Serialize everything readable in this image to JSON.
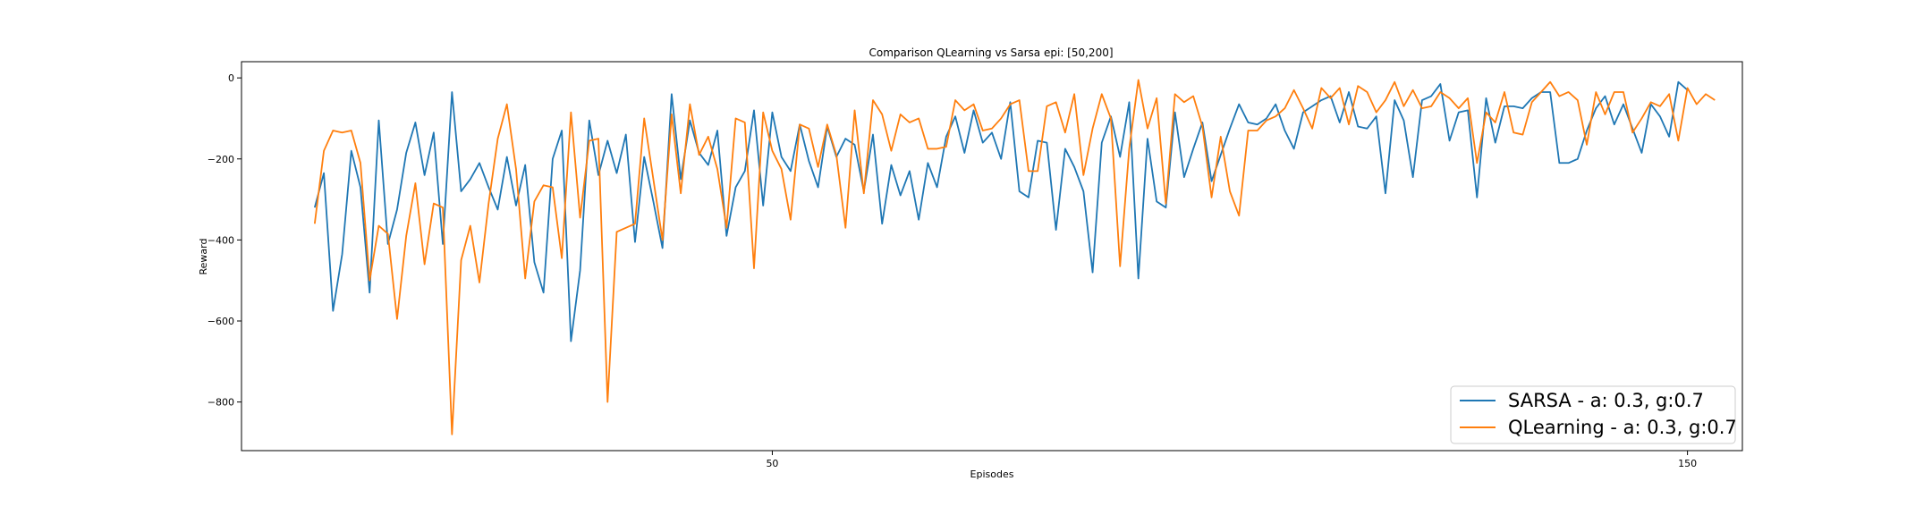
{
  "chart_data": {
    "type": "line",
    "title": "Comparison QLearning vs Sarsa epi: [50,200]",
    "xlabel": "Episodes",
    "ylabel": "Reward",
    "xlim": [
      -8,
      156
    ],
    "ylim": [
      -920,
      40
    ],
    "xticks": [
      50,
      150
    ],
    "yticks": [
      0,
      -200,
      -400,
      -600,
      -800
    ],
    "x_start": 0,
    "grid": false,
    "legend": "lower-right",
    "series": [
      {
        "name": "SARSA - a: 0.3, g:0.7",
        "color": "#1f77b4",
        "values": [
          -320,
          -235,
          -575,
          -435,
          -180,
          -270,
          -530,
          -105,
          -410,
          -325,
          -185,
          -110,
          -240,
          -135,
          -410,
          -35,
          -280,
          -250,
          -210,
          -270,
          -325,
          -195,
          -315,
          -215,
          -455,
          -530,
          -200,
          -130,
          -650,
          -475,
          -105,
          -240,
          -155,
          -235,
          -140,
          -405,
          -195,
          -305,
          -420,
          -40,
          -250,
          -105,
          -185,
          -215,
          -130,
          -390,
          -270,
          -230,
          -80,
          -315,
          -85,
          -195,
          -230,
          -115,
          -205,
          -270,
          -120,
          -195,
          -150,
          -165,
          -280,
          -140,
          -360,
          -215,
          -290,
          -230,
          -350,
          -210,
          -270,
          -145,
          -95,
          -185,
          -80,
          -160,
          -135,
          -200,
          -60,
          -280,
          -295,
          -155,
          -160,
          -375,
          -175,
          -220,
          -280,
          -480,
          -160,
          -95,
          -195,
          -60,
          -495,
          -150,
          -305,
          -320,
          -85,
          -245,
          -175,
          -110,
          -255,
          -190,
          -125,
          -65,
          -110,
          -115,
          -100,
          -65,
          -130,
          -175,
          -85,
          -70,
          -55,
          -45,
          -110,
          -35,
          -120,
          -125,
          -95,
          -285,
          -55,
          -105,
          -245,
          -55,
          -45,
          -15,
          -155,
          -85,
          -80,
          -295,
          -50,
          -160,
          -70,
          -70,
          -75,
          -50,
          -35,
          -35,
          -210,
          -210,
          -200,
          -130,
          -75,
          -45,
          -115,
          -65,
          -125,
          -185,
          -65,
          -95,
          -145,
          -10,
          -30
        ]
      },
      {
        "name": "QLearning - a: 0.3, g:0.7",
        "color": "#ff7f0e",
        "values": [
          -360,
          -180,
          -130,
          -135,
          -130,
          -210,
          -500,
          -365,
          -385,
          -595,
          -390,
          -260,
          -460,
          -310,
          -320,
          -880,
          -450,
          -365,
          -505,
          -310,
          -150,
          -65,
          -225,
          -495,
          -305,
          -265,
          -270,
          -445,
          -85,
          -345,
          -155,
          -150,
          -800,
          -380,
          -370,
          -360,
          -100,
          -250,
          -400,
          -90,
          -285,
          -65,
          -190,
          -145,
          -225,
          -370,
          -100,
          -110,
          -470,
          -85,
          -180,
          -225,
          -350,
          -115,
          -125,
          -220,
          -115,
          -190,
          -370,
          -80,
          -285,
          -55,
          -90,
          -180,
          -90,
          -110,
          -100,
          -175,
          -175,
          -170,
          -55,
          -80,
          -65,
          -130,
          -125,
          -100,
          -65,
          -55,
          -230,
          -230,
          -70,
          -60,
          -135,
          -40,
          -240,
          -125,
          -40,
          -100,
          -465,
          -175,
          -5,
          -125,
          -50,
          -310,
          -40,
          -60,
          -45,
          -120,
          -295,
          -145,
          -280,
          -340,
          -130,
          -130,
          -105,
          -95,
          -75,
          -30,
          -75,
          -125,
          -25,
          -50,
          -25,
          -115,
          -20,
          -35,
          -85,
          -55,
          -10,
          -70,
          -30,
          -75,
          -70,
          -35,
          -50,
          -75,
          -50,
          -210,
          -85,
          -110,
          -35,
          -135,
          -140,
          -60,
          -35,
          -10,
          -45,
          -35,
          -55,
          -165,
          -35,
          -90,
          -35,
          -35,
          -135,
          -100,
          -60,
          -70,
          -40,
          -155,
          -25,
          -65,
          -40,
          -55
        ]
      }
    ]
  }
}
